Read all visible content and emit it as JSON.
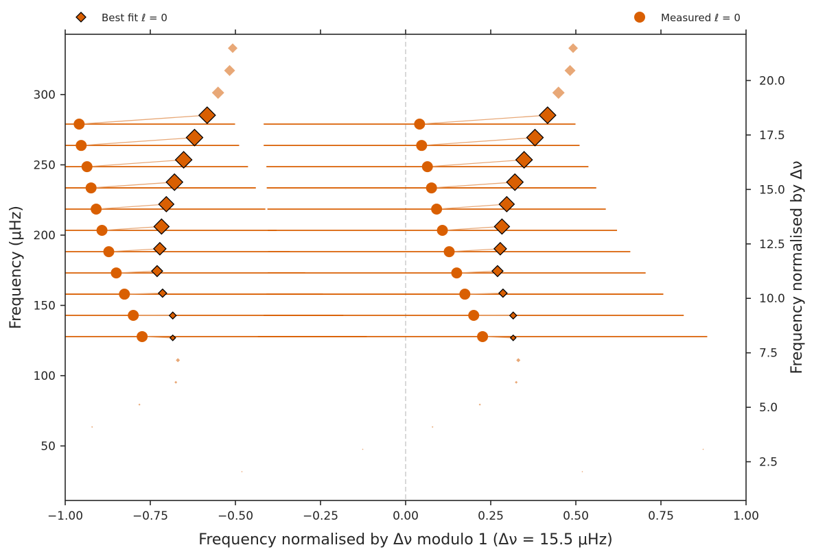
{
  "chart_data": {
    "type": "scatter",
    "xlabel": "Frequency normalised by Δν modulo 1 (Δν = 15.5 μHz)",
    "ylabel": "Frequency (μHz)",
    "ylabel_right": "Frequency normalised by Δν",
    "delta_nu": 15.5,
    "xlim": [
      -1.0,
      1.0
    ],
    "ylim": [
      11.2,
      342.9
    ],
    "xticks": [
      -1.0,
      -0.75,
      -0.5,
      -0.25,
      0.0,
      0.25,
      0.5,
      0.75,
      1.0
    ],
    "xtick_labels": [
      "−1.00",
      "−0.75",
      "−0.50",
      "−0.25",
      "0.00",
      "0.25",
      "0.50",
      "0.75",
      "1.00"
    ],
    "yticks": [
      50,
      100,
      150,
      200,
      250,
      300
    ],
    "ytick_labels": [
      "50",
      "100",
      "150",
      "200",
      "250",
      "300"
    ],
    "yticks_right": [
      2.5,
      5.0,
      7.5,
      10.0,
      12.5,
      15.0,
      17.5,
      20.0
    ],
    "ytick_right_labels": [
      "2.5",
      "5.0",
      "7.5",
      "10.0",
      "12.5",
      "15.0",
      "17.5",
      "20.0"
    ],
    "grid": false,
    "vertical_reference_line": 0.0,
    "colors": {
      "measured": "#d95f02",
      "bestfit": "#d95f02",
      "bestfit_faded": "#e8a877",
      "connector": "#e8a877",
      "errorbar": "#d95f02",
      "reference": "#c8c8c8",
      "axes": "#262626"
    },
    "series": [
      {
        "name": "Measured ℓ = 0",
        "marker": "circle",
        "x": [
          -0.959,
          -0.953,
          -0.936,
          -0.924,
          -0.909,
          -0.892,
          -0.872,
          -0.85,
          -0.826,
          -0.8,
          -0.774
        ],
        "y": [
          279.0,
          263.8,
          248.7,
          233.6,
          218.5,
          203.4,
          188.2,
          173.1,
          158.0,
          142.9,
          127.8
        ],
        "xerr": [
          0.458,
          0.464,
          0.473,
          0.484,
          0.497,
          0.513,
          0.532,
          0.555,
          0.583,
          0.617,
          0.66
        ]
      },
      {
        "name": "Best fit ℓ = 0",
        "marker": "diamond",
        "x": [
          -0.583,
          -0.62,
          -0.652,
          -0.679,
          -0.703,
          -0.717,
          -0.722,
          -0.73,
          -0.714,
          -0.684,
          -0.684
        ],
        "y": [
          285.3,
          269.4,
          253.6,
          237.7,
          222.0,
          206.1,
          190.3,
          174.4,
          158.7,
          142.8,
          126.9
        ],
        "size": [
          12,
          12,
          12,
          12,
          11,
          11,
          9,
          8,
          6,
          5,
          4
        ],
        "connects_to_measured": true
      },
      {
        "name": "",
        "marker": "diamond",
        "faded": true,
        "x": [
          -0.508,
          -0.517,
          -0.551,
          -0.669,
          -0.675,
          -0.782,
          -0.921,
          -0.126,
          -0.481
        ],
        "y": [
          333.0,
          317.1,
          301.3,
          111.0,
          95.3,
          79.4,
          63.5,
          47.6,
          31.7
        ],
        "size": [
          7,
          8,
          9,
          3,
          2,
          1.5,
          1.2,
          1,
          1
        ]
      }
    ],
    "legend": [
      {
        "label": "Best fit ℓ = 0",
        "marker": "diamond",
        "placement": "top-left"
      },
      {
        "label": "Measured ℓ = 0",
        "marker": "circle",
        "placement": "top-right"
      }
    ]
  }
}
